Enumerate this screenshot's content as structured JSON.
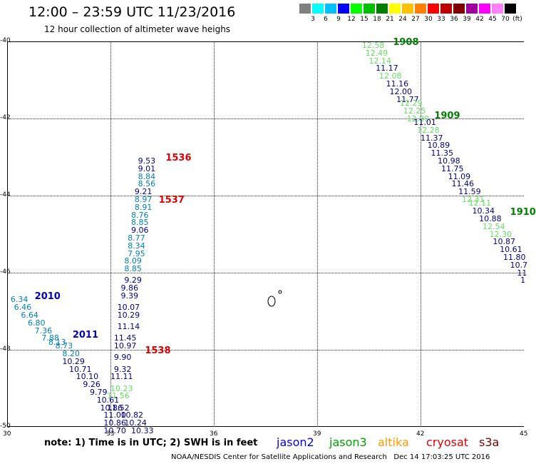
{
  "header": {
    "title": "12:00 – 23:59 UTC 11/23/2016",
    "subtitle": "12 hour collection of altimeter wave heighs"
  },
  "scale": {
    "unit_label": "(ft)",
    "labels": [
      "3",
      "6",
      "9",
      "12",
      "15",
      "18",
      "21",
      "24",
      "27",
      "30",
      "33",
      "36",
      "39",
      "42",
      "45",
      "70"
    ],
    "colors": [
      "#808080",
      "#00ffff",
      "#00c0ff",
      "#0000ff",
      "#00ff00",
      "#00c000",
      "#008000",
      "#ffff00",
      "#ffc000",
      "#ff8000",
      "#ff0000",
      "#c00000",
      "#800000",
      "#a000a0",
      "#ff00ff",
      "#ff80ff",
      "#000000"
    ]
  },
  "axes": {
    "lat_labels": [
      "-40",
      "-42",
      "-44",
      "-46",
      "-48",
      "-50"
    ],
    "lon_labels": [
      "30",
      "33",
      "36",
      "39",
      "42",
      "45"
    ]
  },
  "passes": [
    {
      "label": "1536",
      "color": "#e00000",
      "lat": -43.0,
      "lon": 34.6
    },
    {
      "label": "1537",
      "color": "#e00000",
      "lat": -44.1,
      "lon": 34.4
    },
    {
      "label": "1538",
      "color": "#e00000",
      "lat": -48.0,
      "lon": 34.0
    },
    {
      "label": "1908",
      "color": "#008000",
      "lat": -40.0,
      "lon": 41.2
    },
    {
      "label": "1909",
      "color": "#008000",
      "lat": -41.9,
      "lon": 42.4
    },
    {
      "label": "1910",
      "color": "#008000",
      "lat": -44.4,
      "lon": 44.6
    },
    {
      "label": "2010",
      "color": "#0000c0",
      "lat": -46.6,
      "lon": 30.8
    },
    {
      "label": "2011",
      "color": "#0000c0",
      "lat": -47.6,
      "lon": 31.9
    }
  ],
  "tracks": [
    {
      "name": "cryosat_1536_1538",
      "color": "#00008b",
      "points": [
        {
          "v": "9.53",
          "lat": -43.0,
          "lon": 33.8,
          "c": "#00008b"
        },
        {
          "v": "9.01",
          "lat": -43.2,
          "lon": 33.8,
          "c": "#00008b"
        },
        {
          "v": "8.84",
          "lat": -43.4,
          "lon": 33.8,
          "c": "#0080c0"
        },
        {
          "v": "8.56",
          "lat": -43.6,
          "lon": 33.8,
          "c": "#0080c0"
        },
        {
          "v": "9.21",
          "lat": -43.8,
          "lon": 33.7,
          "c": "#00008b"
        },
        {
          "v": "8.97",
          "lat": -44.0,
          "lon": 33.7,
          "c": "#0080c0"
        },
        {
          "v": "8.91",
          "lat": -44.2,
          "lon": 33.7,
          "c": "#0080c0"
        },
        {
          "v": "8.76",
          "lat": -44.4,
          "lon": 33.6,
          "c": "#0080c0"
        },
        {
          "v": "8.85",
          "lat": -44.6,
          "lon": 33.6,
          "c": "#0080c0"
        },
        {
          "v": "9.06",
          "lat": -44.8,
          "lon": 33.6,
          "c": "#00008b"
        },
        {
          "v": "8.77",
          "lat": -45.0,
          "lon": 33.5,
          "c": "#0080c0"
        },
        {
          "v": "8.34",
          "lat": -45.2,
          "lon": 33.5,
          "c": "#0080c0"
        },
        {
          "v": "7.95",
          "lat": -45.4,
          "lon": 33.5,
          "c": "#0080c0"
        },
        {
          "v": "8.09",
          "lat": -45.6,
          "lon": 33.4,
          "c": "#0080c0"
        },
        {
          "v": "8.85",
          "lat": -45.8,
          "lon": 33.4,
          "c": "#0080c0"
        },
        {
          "v": "9.29",
          "lat": -46.1,
          "lon": 33.4,
          "c": "#00008b"
        },
        {
          "v": "9.86",
          "lat": -46.3,
          "lon": 33.3,
          "c": "#00008b"
        },
        {
          "v": "9.39",
          "lat": -46.5,
          "lon": 33.3,
          "c": "#00008b"
        },
        {
          "v": "10.07",
          "lat": -46.8,
          "lon": 33.2,
          "c": "#00008b"
        },
        {
          "v": "10.29",
          "lat": -47.0,
          "lon": 33.2,
          "c": "#00008b"
        },
        {
          "v": "11.14",
          "lat": -47.3,
          "lon": 33.2,
          "c": "#00008b"
        },
        {
          "v": "11.45",
          "lat": -47.6,
          "lon": 33.1,
          "c": "#00008b"
        },
        {
          "v": "10.97",
          "lat": -47.8,
          "lon": 33.1,
          "c": "#00008b"
        },
        {
          "v": "9.90",
          "lat": -48.1,
          "lon": 33.1,
          "c": "#00008b"
        },
        {
          "v": "9.32",
          "lat": -48.4,
          "lon": 33.1,
          "c": "#00008b"
        },
        {
          "v": "11.11",
          "lat": -48.6,
          "lon": 33.0,
          "c": "#00008b"
        },
        {
          "v": "10.23",
          "lat": -48.9,
          "lon": 33.0,
          "c": "#66dd66"
        },
        {
          "v": "11.56",
          "lat": -49.1,
          "lon": 32.9,
          "c": "#66dd66"
        },
        {
          "v": "11.52",
          "lat": -49.4,
          "lon": 32.9,
          "c": "#00008b"
        },
        {
          "v": "10.82",
          "lat": -49.6,
          "lon": 33.3,
          "c": "#00008b"
        },
        {
          "v": "10.24",
          "lat": -49.8,
          "lon": 33.4,
          "c": "#00008b"
        },
        {
          "v": "10.33",
          "lat": -50.0,
          "lon": 33.6,
          "c": "#00008b"
        }
      ]
    },
    {
      "name": "jason2_2010_2011",
      "color": "#0080c0",
      "points": [
        {
          "v": "6.34",
          "lat": -46.6,
          "lon": 30.1,
          "c": "#0080c0"
        },
        {
          "v": "6.46",
          "lat": -46.8,
          "lon": 30.2,
          "c": "#0080c0"
        },
        {
          "v": "6.64",
          "lat": -47.0,
          "lon": 30.4,
          "c": "#0080c0"
        },
        {
          "v": "6.80",
          "lat": -47.2,
          "lon": 30.6,
          "c": "#0080c0"
        },
        {
          "v": "7.36",
          "lat": -47.4,
          "lon": 30.8,
          "c": "#0080c0"
        },
        {
          "v": "7.88",
          "lat": -47.6,
          "lon": 31.0,
          "c": "#0080c0"
        },
        {
          "v": "8.13",
          "lat": -47.7,
          "lon": 31.2,
          "c": "#0080c0"
        },
        {
          "v": "8.73",
          "lat": -47.8,
          "lon": 31.4,
          "c": "#0080c0"
        },
        {
          "v": "8.20",
          "lat": -48.0,
          "lon": 31.6,
          "c": "#0080c0"
        },
        {
          "v": "10.29",
          "lat": -48.2,
          "lon": 31.6,
          "c": "#00008b"
        },
        {
          "v": "10.71",
          "lat": -48.4,
          "lon": 31.8,
          "c": "#00008b"
        },
        {
          "v": "10.10",
          "lat": -48.6,
          "lon": 32.0,
          "c": "#00008b"
        },
        {
          "v": "9.26",
          "lat": -48.8,
          "lon": 32.2,
          "c": "#00008b"
        },
        {
          "v": "9.79",
          "lat": -49.0,
          "lon": 32.4,
          "c": "#00008b"
        },
        {
          "v": "10.61",
          "lat": -49.2,
          "lon": 32.6,
          "c": "#00008b"
        },
        {
          "v": "10.86",
          "lat": -49.4,
          "lon": 32.7,
          "c": "#00008b"
        },
        {
          "v": "11.00",
          "lat": -49.6,
          "lon": 32.8,
          "c": "#00008b"
        },
        {
          "v": "10.86",
          "lat": -49.8,
          "lon": 32.8,
          "c": "#00008b"
        },
        {
          "v": "10.70",
          "lat": -50.0,
          "lon": 32.8,
          "c": "#00008b"
        }
      ]
    },
    {
      "name": "jason3_1908_1910",
      "color": "#00008b",
      "points": [
        {
          "v": "12.58",
          "lat": -40.0,
          "lon": 40.3,
          "c": "#66dd66"
        },
        {
          "v": "12.49",
          "lat": -40.2,
          "lon": 40.4,
          "c": "#66dd66"
        },
        {
          "v": "12.14",
          "lat": -40.4,
          "lon": 40.5,
          "c": "#66dd66"
        },
        {
          "v": "11.17",
          "lat": -40.6,
          "lon": 40.7,
          "c": "#00008b"
        },
        {
          "v": "12.08",
          "lat": -40.8,
          "lon": 40.8,
          "c": "#66dd66"
        },
        {
          "v": "11.16",
          "lat": -41.0,
          "lon": 41.0,
          "c": "#00008b"
        },
        {
          "v": "12.00",
          "lat": -41.2,
          "lon": 41.1,
          "c": "#00008b"
        },
        {
          "v": "11.77",
          "lat": -41.4,
          "lon": 41.3,
          "c": "#00008b"
        },
        {
          "v": "12.29",
          "lat": -41.5,
          "lon": 41.4,
          "c": "#66dd66"
        },
        {
          "v": "12.25",
          "lat": -41.7,
          "lon": 41.5,
          "c": "#66dd66"
        },
        {
          "v": "12.80",
          "lat": -41.9,
          "lon": 41.6,
          "c": "#66dd66"
        },
        {
          "v": "11.01",
          "lat": -42.0,
          "lon": 41.8,
          "c": "#00008b"
        },
        {
          "v": "12.28",
          "lat": -42.2,
          "lon": 41.9,
          "c": "#66dd66"
        },
        {
          "v": "11.37",
          "lat": -42.4,
          "lon": 42.0,
          "c": "#00008b"
        },
        {
          "v": "10.89",
          "lat": -42.6,
          "lon": 42.2,
          "c": "#00008b"
        },
        {
          "v": "11.35",
          "lat": -42.8,
          "lon": 42.3,
          "c": "#00008b"
        },
        {
          "v": "10.98",
          "lat": -43.0,
          "lon": 42.5,
          "c": "#00008b"
        },
        {
          "v": "11.75",
          "lat": -43.2,
          "lon": 42.6,
          "c": "#00008b"
        },
        {
          "v": "11.09",
          "lat": -43.4,
          "lon": 42.8,
          "c": "#00008b"
        },
        {
          "v": "11.46",
          "lat": -43.6,
          "lon": 42.9,
          "c": "#00008b"
        },
        {
          "v": "11.59",
          "lat": -43.8,
          "lon": 43.1,
          "c": "#00008b"
        },
        {
          "v": "12.31",
          "lat": -44.0,
          "lon": 43.2,
          "c": "#66dd66"
        },
        {
          "v": "12.11",
          "lat": -44.1,
          "lon": 43.4,
          "c": "#66dd66"
        },
        {
          "v": "10.34",
          "lat": -44.3,
          "lon": 43.5,
          "c": "#00008b"
        },
        {
          "v": "10.88",
          "lat": -44.5,
          "lon": 43.7,
          "c": "#00008b"
        },
        {
          "v": "12.54",
          "lat": -44.7,
          "lon": 43.8,
          "c": "#66dd66"
        },
        {
          "v": "12.30",
          "lat": -44.9,
          "lon": 44.0,
          "c": "#66dd66"
        },
        {
          "v": "10.87",
          "lat": -45.1,
          "lon": 44.1,
          "c": "#00008b"
        },
        {
          "v": "10.61",
          "lat": -45.3,
          "lon": 44.3,
          "c": "#00008b"
        },
        {
          "v": "11.80",
          "lat": -45.5,
          "lon": 44.4,
          "c": "#00008b"
        },
        {
          "v": "10.7",
          "lat": -45.7,
          "lon": 44.6,
          "c": "#00008b"
        },
        {
          "v": "11",
          "lat": -45.9,
          "lon": 44.8,
          "c": "#00008b"
        },
        {
          "v": "1",
          "lat": -46.1,
          "lon": 44.9,
          "c": "#00008b"
        }
      ]
    }
  ],
  "note": "note: 1) Time is in UTC; 2) SWH is in feet",
  "satellites": [
    {
      "name": "jason2",
      "color": "#0000ff"
    },
    {
      "name": "jason3",
      "color": "#00a000"
    },
    {
      "name": "altika",
      "color": "#ff9900"
    },
    {
      "name": "cryosat",
      "color": "#e00000"
    },
    {
      "name": "s3a",
      "color": "#800000"
    }
  ],
  "footer": {
    "credit": "NOAA/NESDIS Center for Satellite Applications and Research",
    "timestamp": "Dec 14 17:03:25 UTC 2016"
  }
}
